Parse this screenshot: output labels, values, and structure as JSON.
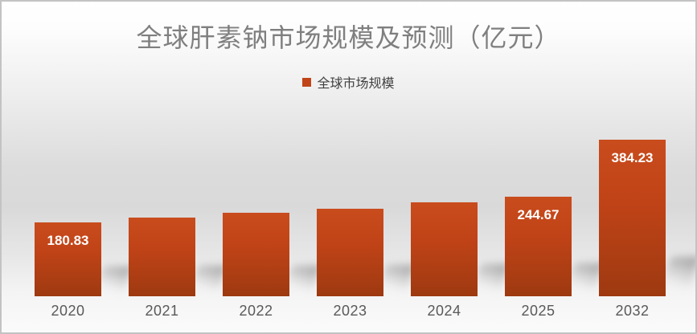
{
  "chart_data": {
    "type": "bar",
    "title": "全球肝素钠市场规模及预测（亿元）",
    "legend_label": "全球市场规模",
    "legend_position": "top",
    "categories": [
      "2020",
      "2021",
      "2022",
      "2023",
      "2024",
      "2025",
      "2032"
    ],
    "series": [
      {
        "name": "全球市场规模",
        "values": [
          180.83,
          192.5,
          204.5,
          214.5,
          230,
          244.67,
          384.23
        ]
      }
    ],
    "visible_data_labels": [
      "180.83",
      "",
      "",
      "",
      "",
      "244.67",
      "384.23"
    ],
    "ylim": [
      0,
      420
    ],
    "grid": false,
    "colors": {
      "bar_top": "#c94c1d",
      "bar_bottom": "#9d3910",
      "legend_marker": "#c04418",
      "title_text": "#7f7f7f",
      "legend_text": "#404040",
      "axis_text": "#595959",
      "data_label_text": "#ffffff"
    }
  }
}
